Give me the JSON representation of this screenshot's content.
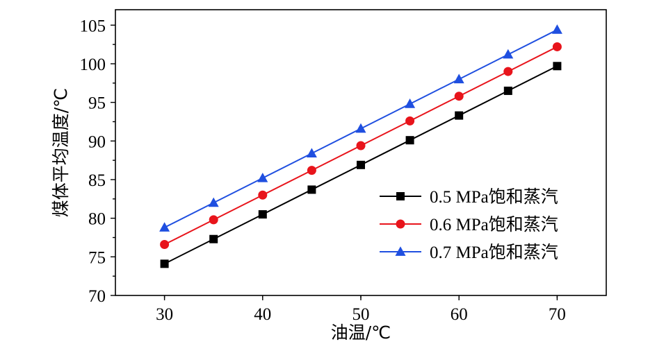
{
  "chart_data": {
    "type": "line",
    "title": "",
    "xlabel": "油温/℃",
    "ylabel": "煤体平均温度/℃",
    "x": [
      30,
      35,
      40,
      45,
      50,
      55,
      60,
      65,
      70
    ],
    "xlim": [
      25,
      75
    ],
    "ylim": [
      70,
      107
    ],
    "xticks": [
      30,
      40,
      50,
      60,
      70
    ],
    "yticks": [
      70,
      75,
      80,
      85,
      90,
      95,
      100,
      105
    ],
    "grid": false,
    "legend_position": "lower-right",
    "series": [
      {
        "name": "0.5 MPa饱和蒸汽",
        "color": "#000000",
        "marker": "square",
        "values": [
          74.1,
          77.3,
          80.5,
          83.7,
          86.9,
          90.1,
          93.3,
          96.5,
          99.7
        ]
      },
      {
        "name": "0.6 MPa饱和蒸汽",
        "color": "#e8141b",
        "marker": "circle",
        "values": [
          76.6,
          79.8,
          83.0,
          86.2,
          89.4,
          92.6,
          95.8,
          99.0,
          102.2
        ]
      },
      {
        "name": "0.7 MPa饱和蒸汽",
        "color": "#1f4fe0",
        "marker": "triangle",
        "values": [
          78.8,
          82.0,
          85.2,
          88.4,
          91.6,
          94.8,
          98.0,
          101.2,
          104.4
        ]
      }
    ]
  }
}
